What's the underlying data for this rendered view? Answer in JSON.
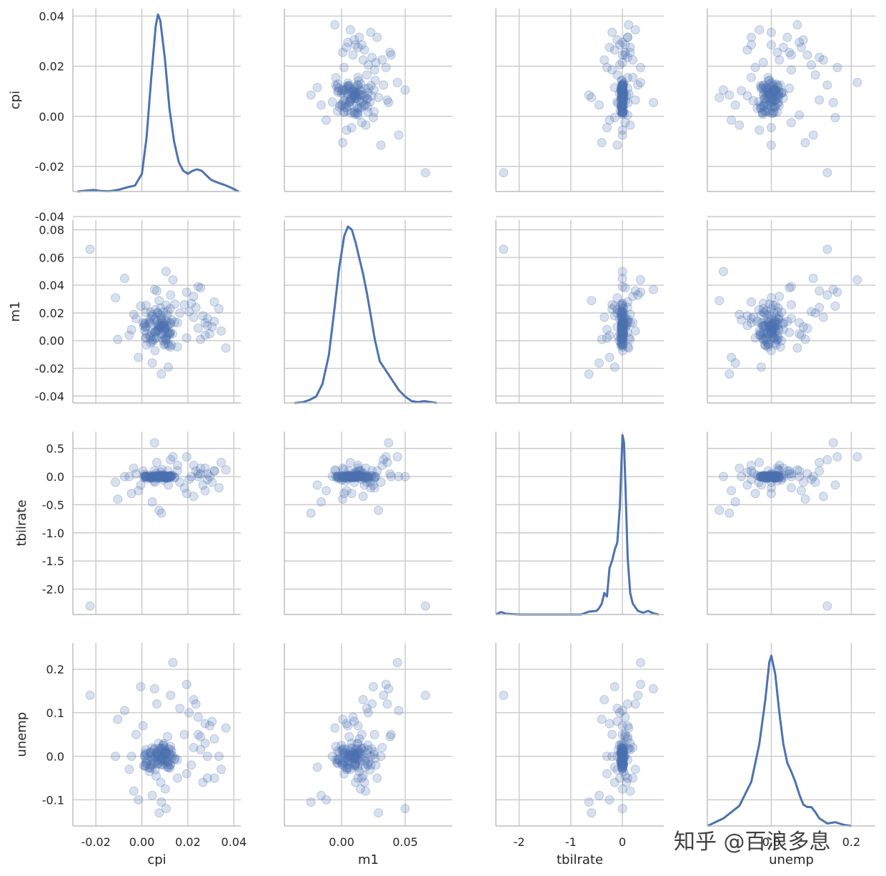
{
  "watermark": "知乎 @百浪多息",
  "colors": {
    "point": "#4c72b0",
    "line": "#4c72b0",
    "grid": "#cccccc",
    "spine": "#bdbdbd"
  },
  "chart_data": {
    "type": "scatter",
    "variables": [
      "cpi",
      "m1",
      "tbilrate",
      "unemp"
    ],
    "axis_labels": {
      "cpi": "cpi",
      "m1": "m1",
      "tbilrate": "tbilrate",
      "unemp": "unemp"
    },
    "ranges": {
      "cpi": [
        -0.03,
        0.043
      ],
      "m1": [
        -0.045,
        0.087
      ],
      "tbilrate": [
        -2.45,
        0.8
      ],
      "unemp": [
        -0.16,
        0.26
      ]
    },
    "kde_ranges": {
      "cpi": [
        0,
        62
      ],
      "m1": [
        0,
        57
      ],
      "tbilrate": [
        0,
        5.1
      ],
      "unemp": [
        0,
        14.5
      ]
    },
    "x_ticks": {
      "cpi": [
        "-0.02",
        "0.00",
        "0.02",
        "0.04"
      ],
      "m1": [
        "0.00",
        "0.05"
      ],
      "tbilrate": [
        "-2",
        "-1",
        "0"
      ],
      "unemp": [
        "0.0",
        "0.2"
      ]
    },
    "x_tick_values": {
      "cpi": [
        -0.02,
        0.0,
        0.02,
        0.04
      ],
      "m1": [
        0.0,
        0.05
      ],
      "tbilrate": [
        -2,
        -1,
        0
      ],
      "unemp": [
        0.0,
        0.2
      ]
    },
    "y_ticks": {
      "cpi": [
        "0.04",
        "0.02",
        "0.00",
        "-0.02",
        "-0.04"
      ],
      "m1": [
        "0.08",
        "0.06",
        "0.04",
        "0.02",
        "0.00",
        "-0.02",
        "-0.04"
      ],
      "tbilrate": [
        "0.5",
        "0.0",
        "-0.5",
        "-1.0",
        "-1.5",
        "-2.0"
      ],
      "unemp": [
        "0.2",
        "0.1",
        "0.0",
        "-0.1"
      ]
    },
    "y_tick_values": {
      "cpi": [
        0.04,
        0.02,
        0.0,
        -0.02,
        -0.04
      ],
      "m1": [
        0.08,
        0.06,
        0.04,
        0.02,
        0.0,
        -0.02,
        -0.04
      ],
      "tbilrate": [
        0.5,
        0.0,
        -0.5,
        -1.0,
        -1.5,
        -2.0
      ],
      "unemp": [
        0.2,
        0.1,
        0.0,
        -0.1
      ]
    },
    "kde": {
      "cpi": [
        [
          -0.028,
          0.0
        ],
        [
          -0.024,
          0.3
        ],
        [
          -0.021,
          0.5
        ],
        [
          -0.018,
          0.2
        ],
        [
          -0.014,
          0.1
        ],
        [
          -0.01,
          0.6
        ],
        [
          -0.006,
          1.5
        ],
        [
          -0.003,
          2.0
        ],
        [
          0.0,
          6
        ],
        [
          0.002,
          18
        ],
        [
          0.004,
          38
        ],
        [
          0.006,
          56
        ],
        [
          0.007,
          60
        ],
        [
          0.008,
          58
        ],
        [
          0.01,
          45
        ],
        [
          0.012,
          28
        ],
        [
          0.014,
          17
        ],
        [
          0.016,
          10
        ],
        [
          0.018,
          7
        ],
        [
          0.02,
          6
        ],
        [
          0.022,
          7
        ],
        [
          0.024,
          7.5
        ],
        [
          0.026,
          7
        ],
        [
          0.028,
          5.5
        ],
        [
          0.03,
          4
        ],
        [
          0.033,
          3
        ],
        [
          0.036,
          2.2
        ],
        [
          0.039,
          1.2
        ],
        [
          0.042,
          0.0
        ]
      ],
      "m1": [
        [
          -0.037,
          0.0
        ],
        [
          -0.03,
          0.3
        ],
        [
          -0.025,
          1.0
        ],
        [
          -0.02,
          2.0
        ],
        [
          -0.015,
          6
        ],
        [
          -0.01,
          15
        ],
        [
          -0.006,
          28
        ],
        [
          -0.002,
          42
        ],
        [
          0.002,
          52
        ],
        [
          0.005,
          55
        ],
        [
          0.008,
          54
        ],
        [
          0.011,
          50
        ],
        [
          0.014,
          45
        ],
        [
          0.017,
          40
        ],
        [
          0.02,
          34
        ],
        [
          0.023,
          27
        ],
        [
          0.026,
          20
        ],
        [
          0.03,
          13
        ],
        [
          0.035,
          10
        ],
        [
          0.04,
          7
        ],
        [
          0.045,
          4
        ],
        [
          0.05,
          2
        ],
        [
          0.055,
          0.6
        ],
        [
          0.06,
          0.3
        ],
        [
          0.065,
          0.6
        ],
        [
          0.07,
          0.3
        ],
        [
          0.075,
          0.0
        ]
      ],
      "tbilrate": [
        [
          -2.45,
          0.0
        ],
        [
          -2.35,
          0.07
        ],
        [
          -2.25,
          0.02
        ],
        [
          -2.0,
          0.0
        ],
        [
          -1.5,
          0.0
        ],
        [
          -1.0,
          0.0
        ],
        [
          -0.8,
          0.0
        ],
        [
          -0.65,
          0.08
        ],
        [
          -0.5,
          0.1
        ],
        [
          -0.45,
          0.18
        ],
        [
          -0.4,
          0.3
        ],
        [
          -0.35,
          0.6
        ],
        [
          -0.3,
          0.5
        ],
        [
          -0.25,
          1.3
        ],
        [
          -0.2,
          1.5
        ],
        [
          -0.15,
          1.8
        ],
        [
          -0.1,
          2.0
        ],
        [
          -0.05,
          3.0
        ],
        [
          -0.02,
          4.2
        ],
        [
          0.0,
          5.0
        ],
        [
          0.03,
          4.8
        ],
        [
          0.06,
          3.5
        ],
        [
          0.1,
          1.6
        ],
        [
          0.15,
          0.6
        ],
        [
          0.2,
          0.3
        ],
        [
          0.3,
          0.1
        ],
        [
          0.4,
          0.05
        ],
        [
          0.5,
          0.1
        ],
        [
          0.6,
          0.03
        ],
        [
          0.7,
          0.0
        ]
      ],
      "unemp": [
        [
          -0.16,
          0.0
        ],
        [
          -0.12,
          0.6
        ],
        [
          -0.08,
          1.6
        ],
        [
          -0.05,
          3.5
        ],
        [
          -0.03,
          6.5
        ],
        [
          -0.015,
          10
        ],
        [
          -0.005,
          13
        ],
        [
          0.0,
          13.5
        ],
        [
          0.01,
          12
        ],
        [
          0.02,
          9
        ],
        [
          0.03,
          6.5
        ],
        [
          0.04,
          5
        ],
        [
          0.05,
          4.3
        ],
        [
          0.06,
          3.5
        ],
        [
          0.07,
          2.5
        ],
        [
          0.08,
          1.7
        ],
        [
          0.09,
          1.5
        ],
        [
          0.1,
          1.5
        ],
        [
          0.11,
          1.1
        ],
        [
          0.12,
          0.6
        ],
        [
          0.14,
          0.2
        ],
        [
          0.16,
          0.3
        ],
        [
          0.18,
          0.1
        ],
        [
          0.2,
          0.0
        ]
      ]
    },
    "points": [
      [
        0.0105,
        0.0255,
        -0.0306,
        0.0103
      ],
      [
        0.0018,
        0.0254,
        0.0035,
        0.0044
      ],
      [
        0.0154,
        -0.0045,
        0.1006,
        -0.0081
      ],
      [
        0.0062,
        0.0019,
        -0.0292,
        0.0063
      ],
      [
        0.0102,
        0.0089,
        -0.0066,
        0.0079
      ],
      [
        0.0014,
        0.0127,
        0.0046,
        -0.0225
      ],
      [
        0.0088,
        0.0129,
        0.0156,
        0.0109
      ],
      [
        0.0044,
        0.0004,
        0.0144,
        -0.0194
      ],
      [
        0.0095,
        0.0121,
        0.0268,
        0.0294
      ],
      [
        0.0016,
        0.0015,
        0.0138,
        -0.0212
      ],
      [
        0.0088,
        0.0018,
        0.1251,
        0.0186
      ],
      [
        0.0058,
        0.0223,
        -0.1003,
        -0.0311
      ],
      [
        0.0085,
        0.0167,
        -0.0191,
        0.0119
      ],
      [
        0.0108,
        0.0099,
        -0.0209,
        0.0049
      ],
      [
        0.0032,
        0.0127,
        -0.0048,
        -0.0267
      ],
      [
        0.0083,
        0.0158,
        0.0255,
        0.0183
      ],
      [
        0.0057,
        -0.0072,
        0.0054,
        -0.0002
      ],
      [
        0.0122,
        0.0045,
        0.0052,
        -0.0271
      ],
      [
        0.0068,
        0.0199,
        -0.0265,
        0.0065
      ],
      [
        0.0046,
        -0.0008,
        -0.0243,
        -0.0107
      ],
      [
        0.0046,
        0.0188,
        -0.0131,
        -0.0046
      ],
      [
        0.0098,
        0.0073,
        -0.0148,
        0.0191
      ],
      [
        0.0124,
        -0.0046,
        0.0045,
        0.0224
      ],
      [
        0.0065,
        0.0137,
        0.0167,
        0.0091
      ],
      [
        0.0021,
        -0.0032,
        0.0034,
        -0.0163
      ],
      [
        0.0054,
        0.0153,
        0.1049,
        0.0175
      ],
      [
        0.0091,
        0.0108,
        0.0146,
        -0.0189
      ],
      [
        0.0143,
        0.0264,
        -0.0096,
        -0.0047
      ],
      [
        0.0111,
        0.0186,
        -0.0003,
        -0.0252
      ],
      [
        0.0071,
        0.0106,
        -0.0058,
        -0.0161
      ],
      [
        0.0086,
        0.0048,
        0.0233,
        -0.0039
      ],
      [
        0.0117,
        -0.0036,
        -0.0281,
        -0.0143
      ],
      [
        0.0129,
        0.0151,
        0.0094,
        -0.0045
      ],
      [
        0.0091,
        0.0048,
        0.0122,
        -0.0079
      ],
      [
        0.0081,
        0.0236,
        0.0077,
        0.0171
      ],
      [
        0.0044,
        0.0176,
        -0.0163,
        0.0194
      ],
      [
        0.0119,
        0.0054,
        -0.0086,
        0.0049
      ],
      [
        0.0018,
        0.0021,
        -0.0049,
        -0.0153
      ],
      [
        0.0142,
        0.0134,
        -0.0199,
        -0.0069
      ],
      [
        0.0037,
        0.0022,
        -0.0263,
        0.0077
      ],
      [
        0.0102,
        -0.0024,
        -0.0244,
        -0.0094
      ],
      [
        0.0086,
        0.0088,
        -0.0031,
        -0.0037
      ],
      [
        0.0035,
        0.0037,
        -0.0069,
        -0.0264
      ],
      [
        0.0038,
        -0.0017,
        -0.0209,
        0.0097
      ],
      [
        0.0112,
        0.0214,
        -0.0057,
        -0.0129
      ],
      [
        0.0097,
        -0.0031,
        0.0011,
        -0.0072
      ],
      [
        0.0102,
        0.0015,
        0.0029,
        0.0084
      ],
      [
        0.0039,
        0.0205,
        -0.0087,
        -0.0203
      ],
      [
        0.0055,
        0.0062,
        -0.0015,
        0.0008
      ],
      [
        0.0093,
        0.0206,
        -0.0169,
        0.0255
      ],
      [
        0.0112,
        0.0044,
        -0.0187,
        -0.0201
      ],
      [
        0.0018,
        0.0101,
        -0.0124,
        -0.0051
      ],
      [
        0.0116,
        0.0113,
        0.0084,
        0.0166
      ],
      [
        0.0103,
        0.0004,
        0.0013,
        0.0134
      ],
      [
        0.0099,
        0.0098,
        0.0014,
        0.0062
      ],
      [
        0.0133,
        0.0049,
        0.0241,
        0.0012
      ],
      [
        0.0084,
        0.0101,
        0.0074,
        -0.0195
      ],
      [
        0.0043,
        0.0058,
        0.0049,
        -0.0266
      ],
      [
        0.0015,
        0.0098,
        0.0002,
        0.0076
      ],
      [
        0.0107,
        0.0009,
        -0.0058,
        -0.0118
      ],
      [
        0.0008,
        0.0106,
        -0.0076,
        -0.0214
      ],
      [
        0.0124,
        0.0061,
        -0.0088,
        -0.0196
      ],
      [
        0.0097,
        0.0111,
        -0.0164,
        -0.0151
      ],
      [
        0.0124,
        0.0128,
        0.0129,
        0.0161
      ],
      [
        0.0121,
        0.0052,
        0.0024,
        0.0012
      ],
      [
        0.0017,
        0.0207,
        0.0051,
        0.0148
      ],
      [
        0.0053,
        0.0007,
        -0.0019,
        -0.0166
      ],
      [
        0.0037,
        0.0158,
        0.0018,
        -0.0002
      ],
      [
        0.0013,
        0.0073,
        -0.0155,
        0.0031
      ],
      [
        0.0071,
        0.0201,
        0.0186,
        -0.0174
      ],
      [
        0.0106,
        0.0027,
        -0.0183,
        0.0041
      ],
      [
        0.0107,
        0.0141,
        0.0095,
        0.0083
      ],
      [
        0.0101,
        0.0087,
        0.0145,
        0.0099
      ],
      [
        0.0058,
        0.0061,
        0.0149,
        -0.0121
      ],
      [
        0.0123,
        0.0231,
        0.0166,
        -0.0202
      ],
      [
        0.0077,
        0.0104,
        0.0043,
        -0.0013
      ],
      [
        0.0087,
        0.0142,
        0.0085,
        -0.0099
      ],
      [
        0.0129,
        -0.0031,
        0.0104,
        0.0118
      ],
      [
        0.0079,
        0.0183,
        0.0014,
        -0.0113
      ],
      [
        0.0038,
        0.0124,
        -0.0081,
        0.0071
      ],
      [
        0.0091,
        0.0109,
        -0.0131,
        -0.0047
      ],
      [
        0.0072,
        0.0084,
        -0.0191,
        0.0176
      ],
      [
        0.0068,
        0.0074,
        0.0121,
        0.0029
      ],
      [
        0.0059,
        0.0065,
        0.0048,
        -0.0019
      ],
      [
        0.0125,
        0.0124,
        -0.0057,
        0.0047
      ],
      [
        0.0064,
        0.0069,
        0.0052,
        0.0103
      ],
      [
        0.0071,
        0.0103,
        0.0037,
        -0.0031
      ],
      [
        0.0082,
        0.0099,
        -0.0103,
        0.0035
      ],
      [
        0.0113,
        -0.0021,
        0.0067,
        -0.0058
      ],
      [
        0.0072,
        0.0118,
        -0.0103,
        -0.0077
      ],
      [
        0.0365,
        -0.0053,
        0.12,
        0.065
      ],
      [
        0.0255,
        0.0381,
        0.05,
        0.045
      ],
      [
        0.0285,
        0.0159,
        -0.05,
        -0.05
      ],
      [
        0.0235,
        0.0239,
        0.1,
        0.12
      ],
      [
        0.0305,
        0.0099,
        -0.1,
        0.08
      ],
      [
        0.0215,
        0.0269,
        0.0,
        -0.02
      ],
      [
        0.0275,
        0.0129,
        0.15,
        0.03
      ],
      [
        0.0335,
        0.0229,
        -0.2,
        0.0
      ],
      [
        0.0245,
        0.0089,
        0.05,
        0.09
      ],
      [
        0.0195,
        0.0019,
        -0.3,
        -0.04
      ],
      [
        0.0225,
        0.0319,
        0.2,
        0.02
      ],
      [
        0.0295,
        0.0049,
        0.0,
        0.07
      ],
      [
        0.0265,
        0.0179,
        -0.15,
        -0.06
      ],
      [
        0.0315,
        0.0139,
        0.1,
        0.04
      ],
      [
        0.0205,
        0.0209,
        -0.05,
        0.1
      ],
      [
        0.0345,
        0.0069,
        0.25,
        -0.03
      ],
      [
        0.0185,
        0.0259,
        -0.2,
        0.05
      ],
      [
        0.0255,
        0.0009,
        0.15,
        0.015
      ],
      [
        0.0225,
        0.0169,
        -0.35,
        0.13
      ],
      [
        0.0285,
        0.0109,
        0.05,
        0.0
      ],
      [
        0.0195,
        0.0349,
        0.35,
        0.165
      ],
      [
        0.0165,
        0.0199,
        -0.1,
        0.11
      ],
      [
        0.0245,
        0.0389,
        0.0,
        0.05
      ],
      [
        0.0315,
        0.0279,
        0.1,
        -0.05
      ],
      [
        0.0275,
        0.0039,
        -0.25,
        0.075
      ],
      [
        -0.0005,
        0.0249,
        -0.15,
        0.16
      ],
      [
        -0.0025,
        0.0159,
        0.05,
        0.05
      ],
      [
        -0.0045,
        0.0079,
        -0.3,
        0.0
      ],
      [
        -0.0035,
        0.0189,
        0.15,
        -0.08
      ],
      [
        -0.0105,
        0.0009,
        -0.4,
        0.085
      ],
      [
        -0.0075,
        0.0449,
        0.0,
        0.105
      ],
      [
        -0.0115,
        0.0309,
        -0.1,
        0.0
      ],
      [
        -0.0015,
        -0.0121,
        -0.25,
        -0.1
      ],
      [
        0.0005,
        0.0129,
        0.1,
        0.07
      ],
      [
        -0.0055,
        0.0039,
        0.0,
        -0.03
      ],
      [
        0.0045,
        -0.0161,
        -0.45,
        -0.09
      ],
      [
        0.0065,
        0.0359,
        0.25,
        0.12
      ],
      [
        0.0085,
        -0.0241,
        -0.65,
        -0.105
      ],
      [
        0.0105,
        0.0499,
        0.0,
        -0.12
      ],
      [
        0.0135,
        0.0439,
        0.35,
        0.215
      ],
      [
        0.0055,
        0.0369,
        0.6,
        0.155
      ],
      [
        0.0125,
        0.0329,
        0.3,
        0.14
      ],
      [
        0.0075,
        0.0289,
        -0.6,
        -0.13
      ],
      [
        0.0155,
        0.0129,
        0.2,
        -0.05
      ],
      [
        0.0115,
        -0.0191,
        -0.15,
        -0.025
      ],
      [
        0.0012,
        0.0119,
        0.04,
        0.0
      ],
      [
        0.0022,
        0.0049,
        -0.04,
        -0.01
      ],
      [
        0.0032,
        0.0139,
        0.02,
        -0.035
      ],
      [
        0.0052,
        0.0029,
        -0.08,
        0.015
      ],
      [
        0.0062,
        0.0169,
        0.06,
        -0.045
      ],
      [
        0.0072,
        0.0079,
        -0.02,
        0.03
      ],
      [
        0.0082,
        0.0109,
        0.08,
        -0.06
      ],
      [
        0.0092,
        -0.0001,
        -0.06,
        0.025
      ],
      [
        0.0102,
        0.0149,
        0.0,
        -0.075
      ],
      [
        0.0112,
        0.0059,
        0.1,
        0.045
      ],
      [
        -0.0225,
        0.0659,
        -2.3,
        0.14
      ]
    ]
  }
}
